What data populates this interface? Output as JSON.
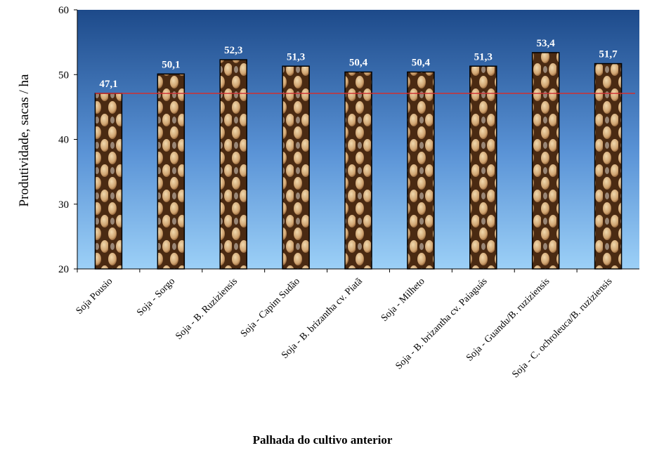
{
  "chart_data": {
    "type": "bar",
    "y_label": "Produtividade, sacas / ha",
    "x_label": "Palhada do cultivo anterior",
    "categories": [
      "Soja Pousio",
      "Soja - Sorgo",
      "Soja - B. Ruziziensis",
      "Soja - Capim Sudão",
      "Soja - B. brizantha cv. Piatã",
      "Soja - Milheto",
      "Soja - B. brizantha cv. Paiaguás",
      "Soja - Guandu/B. ruziziensis",
      "Soja - C. ochroleuca/B. ruziziensis"
    ],
    "values": [
      47.1,
      50.1,
      52.3,
      51.3,
      50.4,
      50.4,
      51.3,
      53.4,
      51.7
    ],
    "value_labels": [
      "47,1",
      "50,1",
      "52,3",
      "51,3",
      "50,4",
      "50,4",
      "51,3",
      "53,4",
      "51,7"
    ],
    "reference_line": 47.1,
    "reference_color": "#d03030",
    "ylim": [
      20,
      60
    ],
    "yticks": [
      20,
      30,
      40,
      50,
      60
    ]
  }
}
